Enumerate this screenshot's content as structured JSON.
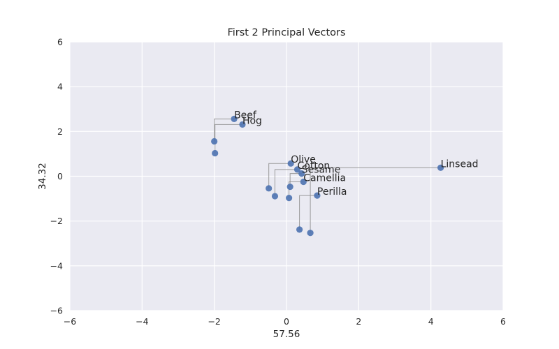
{
  "chart_data": {
    "type": "scatter",
    "title": "First 2 Principal Vectors",
    "xlabel": "57.56",
    "ylabel": "34.32",
    "xlim": [
      -6,
      6
    ],
    "ylim": [
      -6,
      6
    ],
    "xticks": [
      -6,
      -4,
      -2,
      0,
      2,
      4,
      6
    ],
    "yticks": [
      -6,
      -4,
      -2,
      0,
      2,
      4,
      6
    ],
    "xtick_labels": [
      "−6",
      "−4",
      "−2",
      "0",
      "2",
      "4",
      "6"
    ],
    "ytick_labels": [
      "−6",
      "−4",
      "−2",
      "0",
      "2",
      "4",
      "6"
    ],
    "grid": true,
    "background": "#eaeaf2",
    "point_color": "#4c72b0",
    "link_color": "#8c8c8c",
    "points": [
      {
        "label": "Linsead",
        "x": 4.27,
        "y": 0.38
      },
      {
        "label": "Perilla",
        "x": 0.85,
        "y": -0.86
      },
      {
        "label": "Cotton",
        "x": 0.3,
        "y": 0.3
      },
      {
        "label": "Sesame",
        "x": 0.42,
        "y": 0.12
      },
      {
        "label": "Camellia",
        "x": 0.47,
        "y": -0.25
      },
      {
        "label": "Olive",
        "x": 0.12,
        "y": 0.57
      },
      {
        "label": "Beef",
        "x": -1.45,
        "y": 2.56
      },
      {
        "label": "Hog",
        "x": -1.22,
        "y": 2.31
      },
      {
        "label": "",
        "x": -2.0,
        "y": 1.56
      },
      {
        "label": "",
        "x": -1.98,
        "y": 1.03
      },
      {
        "label": "",
        "x": -0.49,
        "y": -0.54
      },
      {
        "label": "",
        "x": -0.32,
        "y": -0.89
      },
      {
        "label": "",
        "x": 0.1,
        "y": -0.47
      },
      {
        "label": "",
        "x": 0.07,
        "y": -0.97
      },
      {
        "label": "",
        "x": 0.36,
        "y": -2.38
      },
      {
        "label": "",
        "x": 0.66,
        "y": -2.53
      }
    ],
    "links": [
      {
        "x0": -1.45,
        "x1": -2.0,
        "y0": 2.56,
        "y1": 1.56,
        "h": 2.56
      },
      {
        "x0": -1.22,
        "x1": -1.98,
        "y0": 2.31,
        "y1": 1.03,
        "h": 2.31
      },
      {
        "x0": 4.27,
        "x1": 0.66,
        "y0": 0.38,
        "y1": -2.53,
        "h": 0.38
      },
      {
        "x0": 0.12,
        "x1": -0.49,
        "y0": 0.57,
        "y1": -0.54,
        "h": 0.57
      },
      {
        "x0": 0.3,
        "x1": -0.32,
        "y0": 0.3,
        "y1": -0.89,
        "h": 0.3
      },
      {
        "x0": 0.42,
        "x1": 0.1,
        "y0": 0.12,
        "y1": -0.47,
        "h": 0.12
      },
      {
        "x0": 0.47,
        "x1": 0.07,
        "y0": -0.25,
        "y1": -0.97,
        "h": -0.25
      },
      {
        "x0": 0.85,
        "x1": 0.36,
        "y0": -0.86,
        "y1": -2.38,
        "h": -0.86
      }
    ]
  }
}
